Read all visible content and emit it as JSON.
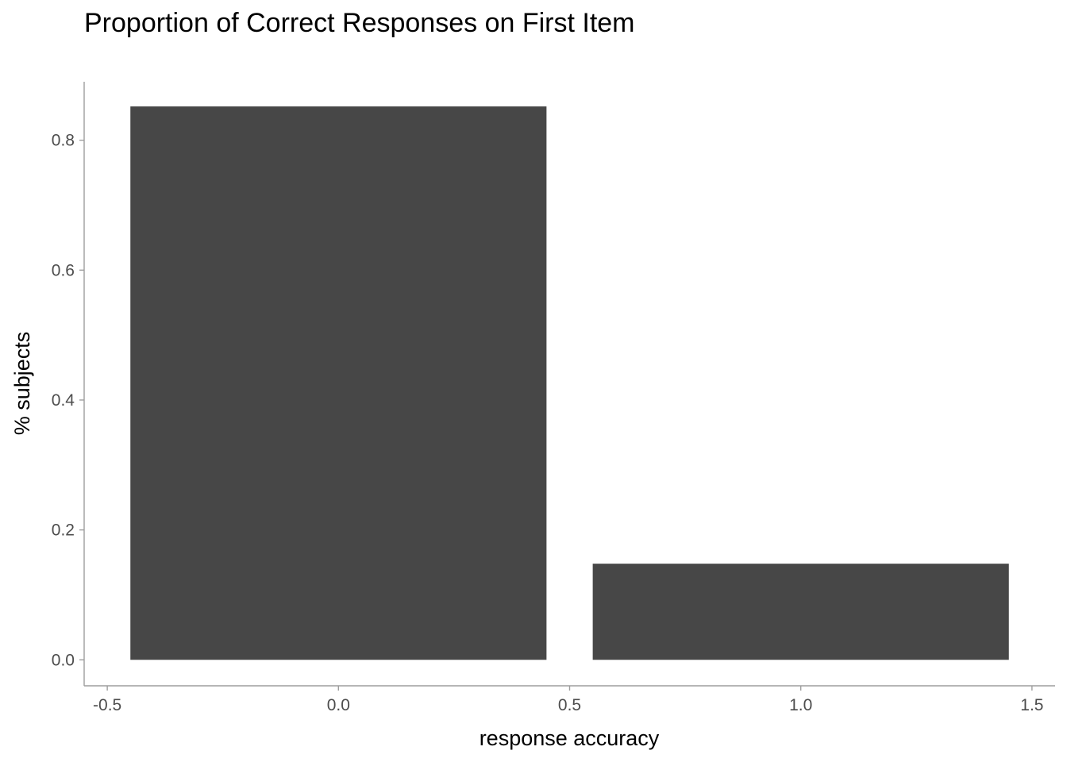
{
  "chart_data": {
    "type": "bar",
    "title": "Proportion of Correct Responses on First Item",
    "xlabel": "response accuracy",
    "ylabel": "% subjects",
    "x": [
      0,
      1
    ],
    "values": [
      0.852,
      0.148
    ],
    "bar_width": 0.9,
    "xlim": [
      -0.55,
      1.55
    ],
    "ylim": [
      -0.04,
      0.89
    ],
    "xticks": [
      -0.5,
      0.0,
      0.5,
      1.0,
      1.5
    ],
    "xtick_labels": [
      "-0.5",
      "0.0",
      "0.5",
      "1.0",
      "1.5"
    ],
    "yticks": [
      0.0,
      0.2,
      0.4,
      0.6,
      0.8
    ],
    "ytick_labels": [
      "0.0",
      "0.2",
      "0.4",
      "0.6",
      "0.8"
    ],
    "grid": false,
    "legend": "none",
    "bar_color": "#474747",
    "axis_color": "#9e9e9e",
    "tick_label_color": "#4d4d4d"
  }
}
